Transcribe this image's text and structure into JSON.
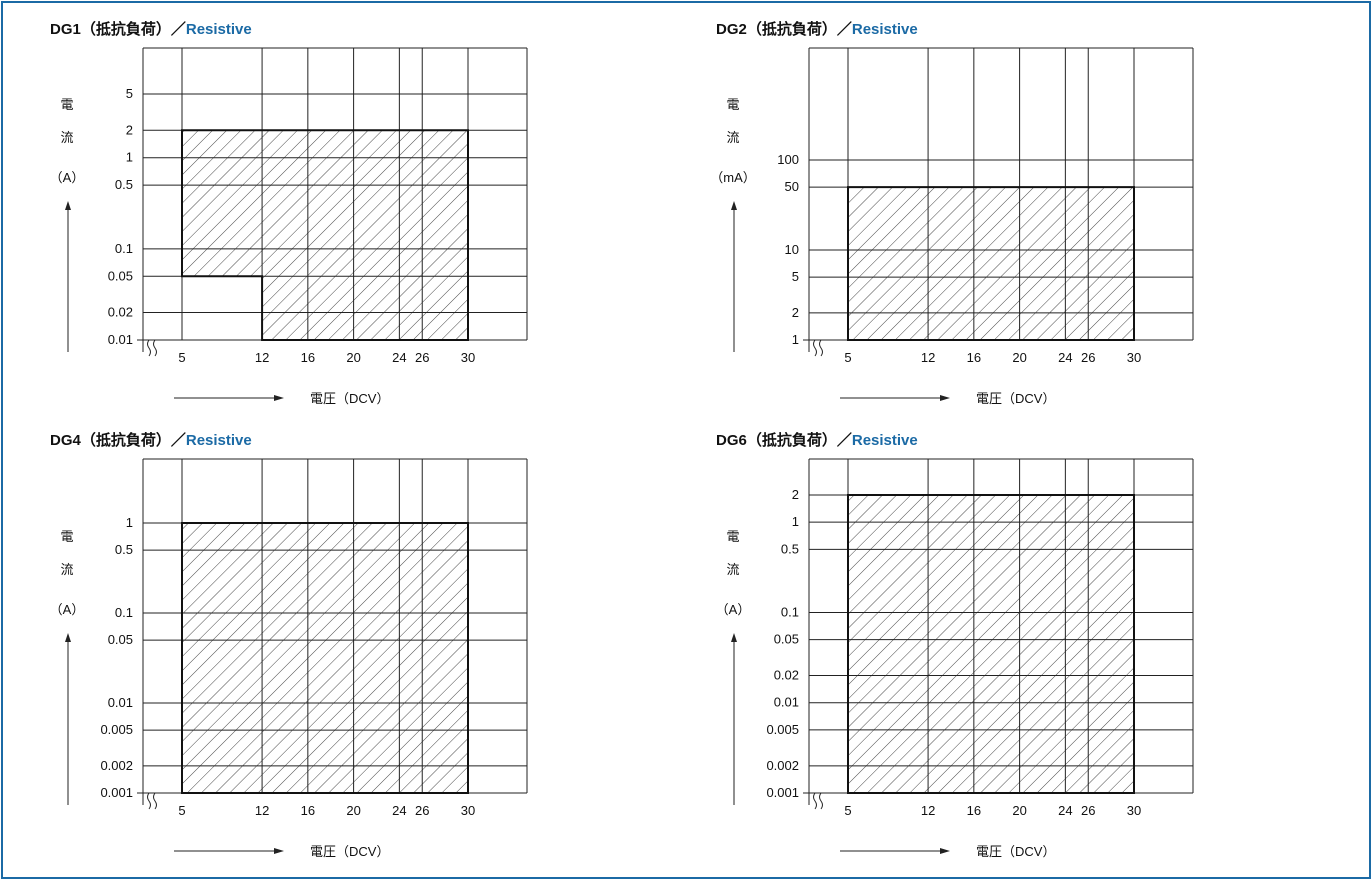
{
  "chart_data": [
    {
      "type": "area",
      "title_prefix": "DG1（抵抗負荷）",
      "title_sep": "／",
      "title_en": "Resistive",
      "y_ticks": [
        5,
        2,
        1,
        0.5,
        0.1,
        0.05,
        0.02,
        0.01
      ],
      "y_tick_labels": [
        "5",
        "2",
        "1",
        "0.5",
        "0.1",
        "0.05",
        "0.02",
        "0.01"
      ],
      "ylim": [
        0.01,
        10
      ],
      "yscale": "log",
      "x_ticks": [
        5,
        12,
        16,
        20,
        24,
        26,
        30
      ],
      "x_tick_labels": [
        "5",
        "12",
        "16",
        "20",
        "24",
        "26",
        "30"
      ],
      "xlim": [
        0,
        35
      ],
      "ylabel_chars": [
        "電",
        "流"
      ],
      "ylabel_unit": "（A）",
      "xlabel": "電圧（DCV）",
      "region": [
        [
          5,
          2
        ],
        [
          30,
          2
        ],
        [
          30,
          0.01
        ],
        [
          12,
          0.01
        ],
        [
          12,
          0.05
        ],
        [
          5,
          0.05
        ]
      ]
    },
    {
      "type": "area",
      "title_prefix": "DG2（抵抗負荷）",
      "title_sep": "／",
      "title_en": "Resistive",
      "y_ticks": [
        100,
        50,
        10,
        5,
        2,
        1
      ],
      "y_tick_labels": [
        "100",
        "50",
        "10",
        "5",
        "2",
        "1"
      ],
      "ylim": [
        1,
        1000
      ],
      "yscale": "log",
      "x_ticks": [
        5,
        12,
        16,
        20,
        24,
        26,
        30
      ],
      "x_tick_labels": [
        "5",
        "12",
        "16",
        "20",
        "24",
        "26",
        "30"
      ],
      "xlim": [
        0,
        35
      ],
      "ylabel_chars": [
        "電",
        "流"
      ],
      "ylabel_unit": "（mA）",
      "xlabel": "電圧（DCV）",
      "region": [
        [
          5,
          50
        ],
        [
          30,
          50
        ],
        [
          30,
          1
        ],
        [
          5,
          1
        ]
      ]
    },
    {
      "type": "area",
      "title_prefix": "DG4（抵抗負荷）",
      "title_sep": "／",
      "title_en": "Resistive",
      "y_ticks": [
        1,
        0.5,
        0.1,
        0.05,
        0.01,
        0.005,
        0.002,
        0.001
      ],
      "y_tick_labels": [
        "1",
        "0.5",
        "0.1",
        "0.05",
        "0.01",
        "0.005",
        "0.002",
        "0.001"
      ],
      "ylim": [
        0.001,
        10
      ],
      "yscale": "log",
      "x_ticks": [
        5,
        12,
        16,
        20,
        24,
        26,
        30
      ],
      "x_tick_labels": [
        "5",
        "12",
        "16",
        "20",
        "24",
        "26",
        "30"
      ],
      "xlim": [
        0,
        35
      ],
      "ylabel_chars": [
        "電",
        "流"
      ],
      "ylabel_unit": "（A）",
      "xlabel": "電圧（DCV）",
      "region": [
        [
          5,
          1
        ],
        [
          30,
          1
        ],
        [
          30,
          0.001
        ],
        [
          5,
          0.001
        ]
      ]
    },
    {
      "type": "area",
      "title_prefix": "DG6（抵抗負荷）",
      "title_sep": "／",
      "title_en": "Resistive",
      "y_ticks": [
        2,
        1,
        0.5,
        0.1,
        0.05,
        0.02,
        0.01,
        0.005,
        0.002,
        0.001
      ],
      "y_tick_labels": [
        "2",
        "1",
        "0.5",
        "0.1",
        "0.05",
        "0.02",
        "0.01",
        "0.005",
        "0.002",
        "0.001"
      ],
      "ylim": [
        0.001,
        10
      ],
      "yscale": "log",
      "x_ticks": [
        5,
        12,
        16,
        20,
        24,
        26,
        30
      ],
      "x_tick_labels": [
        "5",
        "12",
        "16",
        "20",
        "24",
        "26",
        "30"
      ],
      "xlim": [
        0,
        35
      ],
      "ylabel_chars": [
        "電",
        "流"
      ],
      "ylabel_unit": "（A）",
      "xlabel": "電圧（DCV）",
      "region": [
        [
          5,
          2
        ],
        [
          30,
          2
        ],
        [
          30,
          0.001
        ],
        [
          5,
          0.001
        ]
      ]
    }
  ]
}
